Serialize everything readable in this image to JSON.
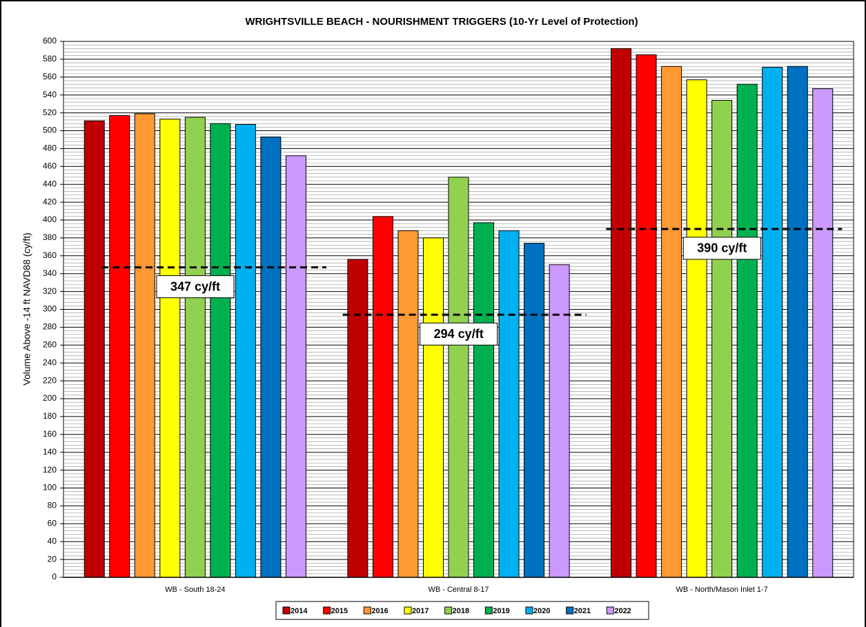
{
  "chart_data": {
    "type": "bar",
    "title": "WRIGHTSVILLE BEACH - NOURISHMENT TRIGGERS (10-Yr Level of Protection)",
    "y_label": "Volume Above -14 ft NAVD88 (cy/ft)",
    "categories": [
      "WB - South 18-24",
      "WB - Central 8-17",
      "WB - North/Mason Inlet 1-7"
    ],
    "series": [
      {
        "name": "2014",
        "color": "#c00000",
        "values": [
          511,
          356,
          592
        ]
      },
      {
        "name": "2015",
        "color": "#ff0000",
        "values": [
          517,
          404,
          585
        ]
      },
      {
        "name": "2016",
        "color": "#ff9933",
        "values": [
          519,
          388,
          572
        ]
      },
      {
        "name": "2017",
        "color": "#ffff00",
        "values": [
          513,
          380,
          557
        ]
      },
      {
        "name": "2018",
        "color": "#92d050",
        "values": [
          515,
          448,
          534
        ]
      },
      {
        "name": "2019",
        "color": "#00b050",
        "values": [
          508,
          397,
          552
        ]
      },
      {
        "name": "2020",
        "color": "#00b0f0",
        "values": [
          507,
          388,
          571
        ]
      },
      {
        "name": "2021",
        "color": "#0070c0",
        "values": [
          493,
          374,
          572
        ]
      },
      {
        "name": "2022",
        "color": "#cc99ff",
        "values": [
          472,
          350,
          547
        ]
      }
    ],
    "thresholds": {
      "values": [
        347,
        294,
        390
      ],
      "value_labels": [
        "347 cy/ft",
        "294 cy/ft",
        "390 cy/ft"
      ]
    },
    "ylim": [
      0,
      600
    ],
    "yticks": [
      0,
      20,
      40,
      60,
      80,
      100,
      120,
      140,
      160,
      180,
      200,
      220,
      240,
      260,
      280,
      300,
      320,
      340,
      360,
      380,
      400,
      420,
      440,
      460,
      480,
      500,
      520,
      540,
      560,
      580,
      600
    ],
    "grid": true,
    "minor_grid_divisions": 5,
    "legend": "bottom"
  }
}
